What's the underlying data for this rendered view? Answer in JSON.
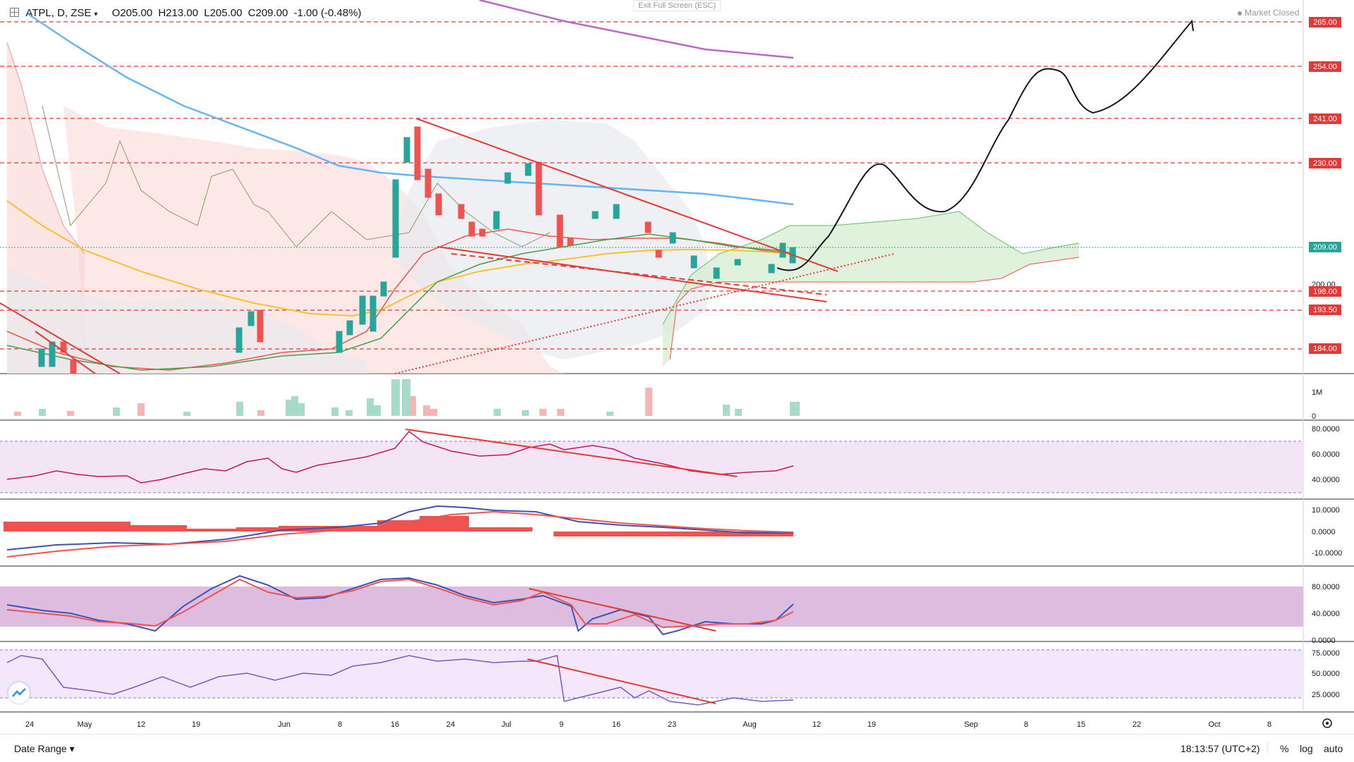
{
  "header": {
    "symbol": "ATPL, D, ZSE",
    "open": "O205.00",
    "high": "H213.00",
    "low": "L205.00",
    "close": "C209.00",
    "change": "-1.00 (-0.48%)"
  },
  "exit_fullscreen": "Exit Full Screen (ESC)",
  "market_status": "Market Closed",
  "bottom": {
    "date_range": "Date Range",
    "clock": "18:13:57 (UTC+2)",
    "percent": "%",
    "log": "log",
    "auto": "auto"
  },
  "colors": {
    "up": "#26a69a",
    "down": "#ef5350",
    "level": "#e53935"
  },
  "chart_data": {
    "type": "candlestick",
    "x_labels": [
      "24",
      "May",
      "12",
      "19",
      "Jun",
      "8",
      "16",
      "24",
      "Jul",
      "9",
      "16",
      "23",
      "Aug",
      "12",
      "19",
      "Sep",
      "8",
      "15",
      "22",
      "Oct",
      "8"
    ],
    "price_scale_labels": [
      "200.00"
    ],
    "current_price": "209.00",
    "levels": [
      "265.00",
      "254.00",
      "241.00",
      "230.00",
      "198.00",
      "193.50",
      "184.00"
    ],
    "recent_candles": [
      {
        "o": 205,
        "h": 213,
        "l": 205,
        "c": 209
      }
    ],
    "volume_scale": [
      "1M",
      "0"
    ],
    "rsi_scale": [
      "80.0000",
      "60.0000",
      "40.0000"
    ],
    "macd_scale": [
      "10.0000",
      "0.0000",
      "-10.0000"
    ],
    "stoch_scale": [
      "80.0000",
      "40.0000",
      "0.0000"
    ],
    "osc_scale": [
      "75.0000",
      "50.0000",
      "25.0000"
    ]
  }
}
